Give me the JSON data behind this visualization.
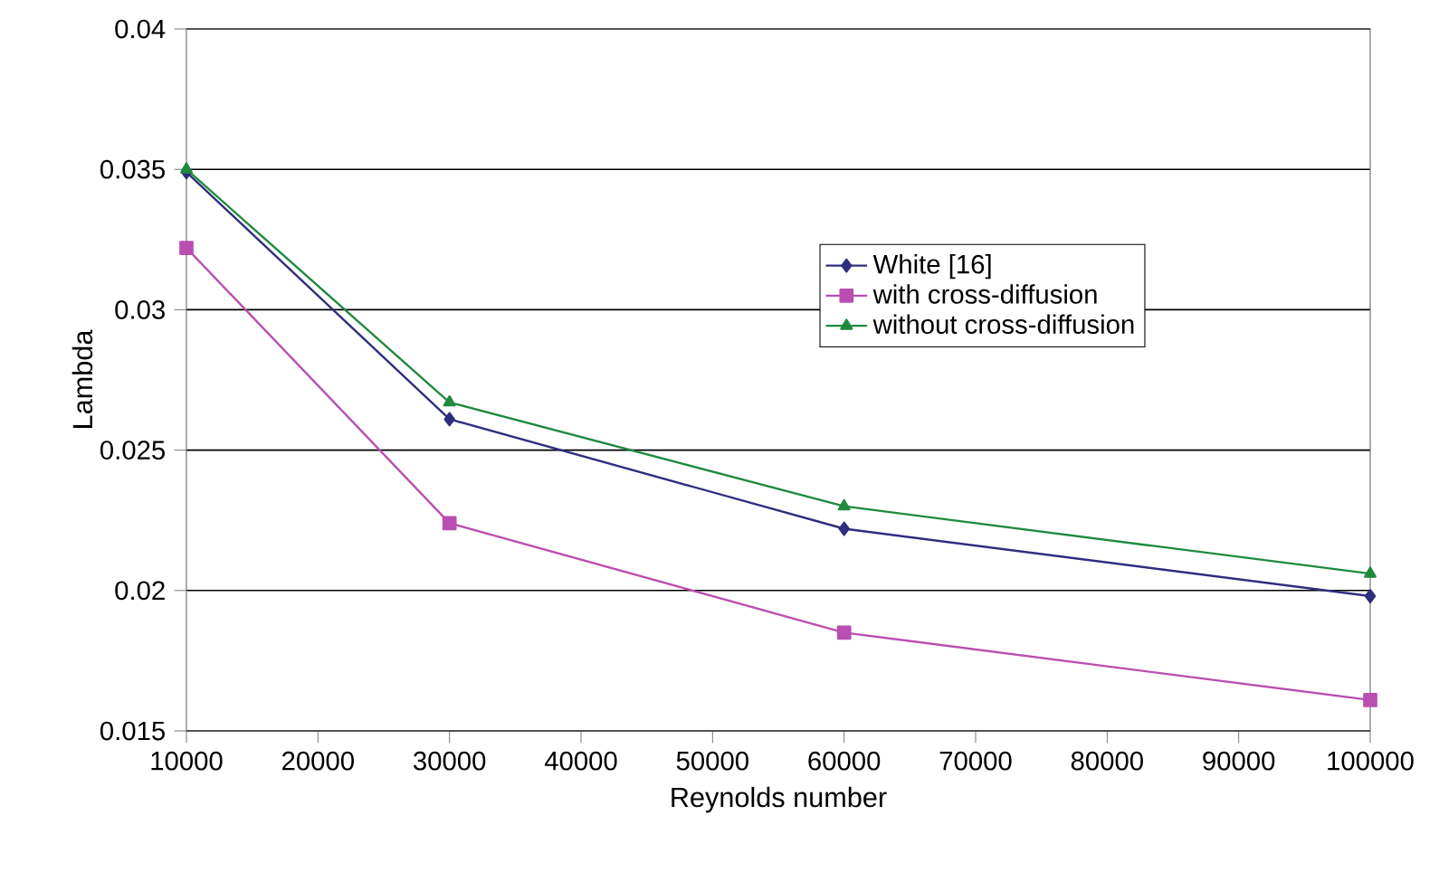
{
  "chart_data": {
    "type": "line",
    "xlabel": "Reynolds number",
    "ylabel": "Lambda",
    "x": [
      10000,
      30000,
      60000,
      100000
    ],
    "series": [
      {
        "name": "White [16]",
        "color": "#2e2e7e",
        "marker": "diamond",
        "values": [
          0.0349,
          0.0261,
          0.0222,
          0.0198
        ]
      },
      {
        "name": "with cross-diffusion",
        "color": "#b94fb0",
        "marker": "square",
        "values": [
          0.0322,
          0.0224,
          0.0185,
          0.0161
        ]
      },
      {
        "name": "without cross-diffusion",
        "color": "#1e8a3e",
        "marker": "triangle",
        "values": [
          0.035,
          0.0267,
          0.023,
          0.0206
        ]
      }
    ],
    "xlim": [
      10000,
      100000
    ],
    "xticks": [
      10000,
      20000,
      30000,
      40000,
      50000,
      60000,
      70000,
      80000,
      90000,
      100000
    ],
    "ylim": [
      0.015,
      0.04
    ],
    "yticks": [
      0.015,
      0.02,
      0.025,
      0.03,
      0.035,
      0.04
    ],
    "grid": "y",
    "legend": "right",
    "line_style": "solid"
  }
}
